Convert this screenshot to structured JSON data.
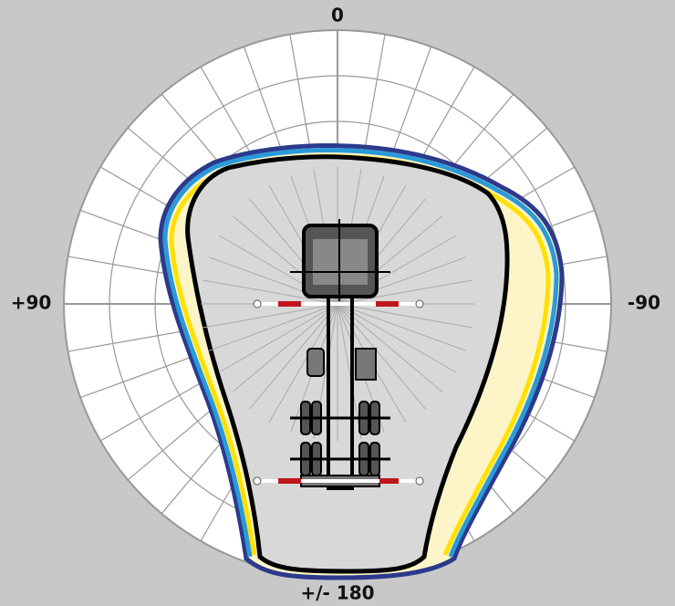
{
  "labels": {
    "top": "0",
    "left": "+90",
    "right": "-90",
    "bottom": "+/- 180"
  }
}
